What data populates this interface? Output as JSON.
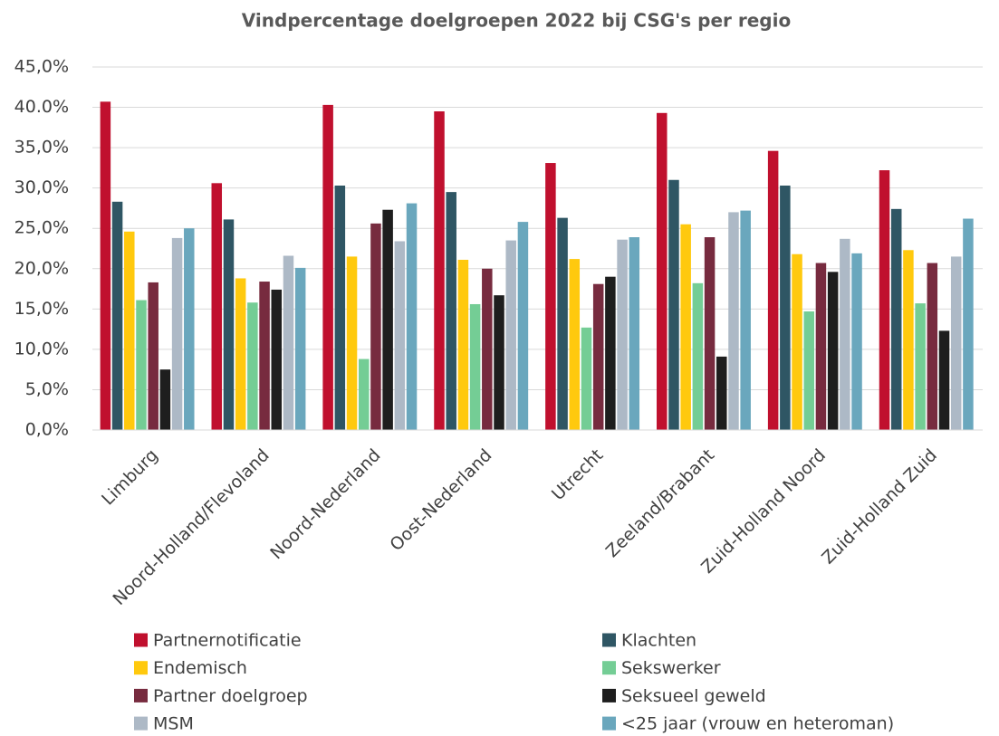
{
  "chart_data": {
    "type": "bar",
    "title": "Vindpercentage doelgroepen 2022 bij CSG's per regio",
    "categories": [
      "Limburg",
      "Noord-Holland/Flevoland",
      "Noord-Nederland",
      "Oost-Nederland",
      "Utrecht",
      "Zeeland/Brabant",
      "Zuid-Holland Noord",
      "Zuid-Holland Zuid"
    ],
    "series": [
      {
        "name": "Partnernotificatie",
        "color": "#c0102e",
        "values": [
          40.7,
          30.6,
          40.3,
          39.5,
          33.1,
          39.3,
          34.6,
          32.2
        ]
      },
      {
        "name": "Klachten",
        "color": "#2f5664",
        "values": [
          28.3,
          26.1,
          30.3,
          29.5,
          26.3,
          31.0,
          30.3,
          27.4
        ]
      },
      {
        "name": "Endemisch",
        "color": "#ffc90e",
        "values": [
          24.6,
          18.8,
          21.5,
          21.1,
          21.2,
          25.5,
          21.8,
          22.3
        ]
      },
      {
        "name": "Sekswerker",
        "color": "#74cd95",
        "values": [
          16.1,
          15.8,
          8.8,
          15.6,
          12.7,
          18.2,
          14.7,
          15.7
        ]
      },
      {
        "name": "Partner doelgroep",
        "color": "#772b3f",
        "values": [
          18.3,
          18.4,
          25.6,
          20.0,
          18.1,
          23.9,
          20.7,
          20.7
        ]
      },
      {
        "name": "Seksueel geweld",
        "color": "#1e1e1e",
        "values": [
          7.5,
          17.4,
          27.3,
          16.7,
          19.0,
          9.1,
          19.6,
          12.3
        ]
      },
      {
        "name": "MSM",
        "color": "#adb9c6",
        "values": [
          23.8,
          21.6,
          23.4,
          23.5,
          23.6,
          27.0,
          23.7,
          21.5
        ]
      },
      {
        "name": "<25 jaar (vrouw en heteroman)",
        "color": "#6aa7bd",
        "values": [
          25.0,
          20.1,
          28.1,
          25.8,
          23.9,
          27.2,
          21.9,
          26.2
        ]
      }
    ],
    "ylim": [
      0,
      45
    ],
    "yticks": [
      {
        "value": 0,
        "label": "0,0%"
      },
      {
        "value": 5,
        "label": "5,0%"
      },
      {
        "value": 10,
        "label": "10,0%"
      },
      {
        "value": 15,
        "label": "15,0%"
      },
      {
        "value": 20,
        "label": "20,0%"
      },
      {
        "value": 25,
        "label": "25,0%"
      },
      {
        "value": 30,
        "label": "30,0%"
      },
      {
        "value": 35,
        "label": "35,0%"
      },
      {
        "value": 40,
        "label": "40.0%"
      },
      {
        "value": 45,
        "label": "45,0%"
      }
    ],
    "grid": true
  }
}
